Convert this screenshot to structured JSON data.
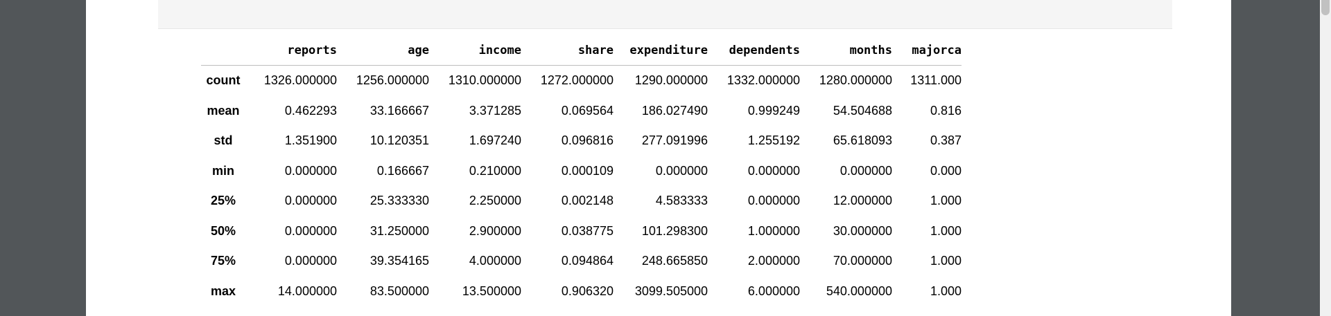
{
  "table": {
    "columns": [
      "reports",
      "age",
      "income",
      "share",
      "expenditure",
      "dependents",
      "months",
      "majorca"
    ],
    "rows": [
      {
        "index": "count",
        "cells": [
          "1326.000000",
          "1256.000000",
          "1310.000000",
          "1272.000000",
          "1290.000000",
          "1332.000000",
          "1280.000000",
          "1311.000"
        ]
      },
      {
        "index": "mean",
        "cells": [
          "0.462293",
          "33.166667",
          "3.371285",
          "0.069564",
          "186.027490",
          "0.999249",
          "54.504688",
          "0.816"
        ]
      },
      {
        "index": "std",
        "cells": [
          "1.351900",
          "10.120351",
          "1.697240",
          "0.096816",
          "277.091996",
          "1.255192",
          "65.618093",
          "0.387"
        ]
      },
      {
        "index": "min",
        "cells": [
          "0.000000",
          "0.166667",
          "0.210000",
          "0.000109",
          "0.000000",
          "0.000000",
          "0.000000",
          "0.000"
        ]
      },
      {
        "index": "25%",
        "cells": [
          "0.000000",
          "25.333330",
          "2.250000",
          "0.002148",
          "4.583333",
          "0.000000",
          "12.000000",
          "1.000"
        ]
      },
      {
        "index": "50%",
        "cells": [
          "0.000000",
          "31.250000",
          "2.900000",
          "0.038775",
          "101.298300",
          "1.000000",
          "30.000000",
          "1.000"
        ]
      },
      {
        "index": "75%",
        "cells": [
          "0.000000",
          "39.354165",
          "4.000000",
          "0.094864",
          "248.665850",
          "2.000000",
          "70.000000",
          "1.000"
        ]
      },
      {
        "index": "max",
        "cells": [
          "14.000000",
          "83.500000",
          "13.500000",
          "0.906320",
          "3099.505000",
          "6.000000",
          "540.000000",
          "1.000"
        ]
      }
    ]
  },
  "colors": {
    "viewer_background": "#525659",
    "page_background": "#ffffff",
    "code_cell_background": "#f5f5f5"
  }
}
